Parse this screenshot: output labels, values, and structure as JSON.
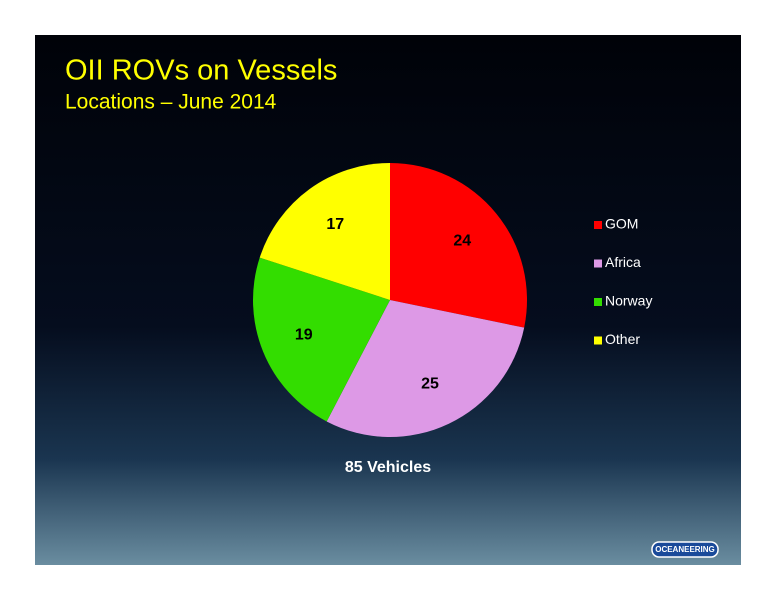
{
  "chart_data": {
    "type": "pie",
    "title": "OII ROVs on Vessels",
    "subtitle": "Locations – June 2014",
    "categories": [
      "GOM",
      "Africa",
      "Norway",
      "Other"
    ],
    "values": [
      24,
      25,
      19,
      17
    ],
    "colors": [
      "#ff0000",
      "#dd99e6",
      "#33dd00",
      "#ffff00"
    ],
    "annotation": "85 Vehicles",
    "legend": "right"
  },
  "logo": "OCEANEERING"
}
